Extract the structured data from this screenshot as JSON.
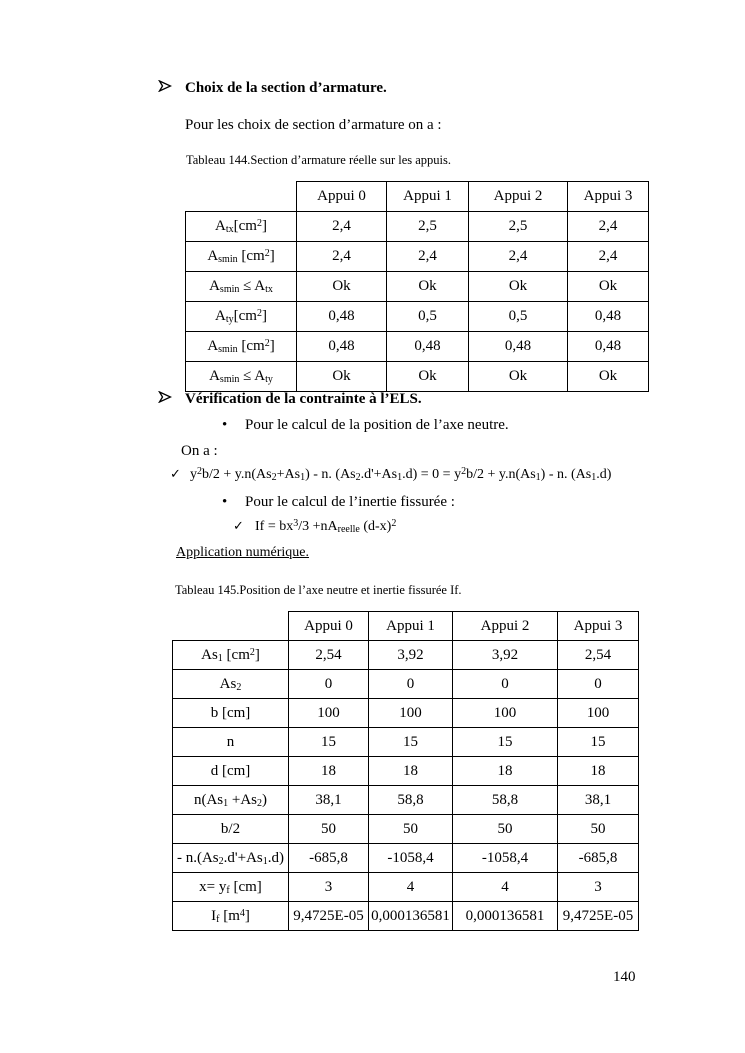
{
  "icons": {
    "check": "✓",
    "bullet": "•"
  },
  "section1": {
    "heading": "Choix de la section d’armature.",
    "intro": "Pour les choix de section d’armature on a :",
    "caption": "Tableau 144.Section d’armature réelle sur les appuis."
  },
  "table1": {
    "col_headers": [
      "Appui 0",
      "Appui 1",
      "Appui 2",
      "Appui 3"
    ],
    "rows": [
      {
        "label": [
          {
            "t": "A"
          },
          {
            "t": "tx",
            "s": "sub"
          },
          {
            "t": "[cm"
          },
          {
            "t": "2",
            "s": "sup"
          },
          {
            "t": "]"
          }
        ],
        "values": [
          "2,4",
          "2,5",
          "2,5",
          "2,4"
        ]
      },
      {
        "label": [
          {
            "t": "A"
          },
          {
            "t": "smin",
            "s": "sub"
          },
          {
            "t": " [cm"
          },
          {
            "t": "2",
            "s": "sup"
          },
          {
            "t": "]"
          }
        ],
        "values": [
          "2,4",
          "2,4",
          "2,4",
          "2,4"
        ]
      },
      {
        "label": [
          {
            "t": "A"
          },
          {
            "t": "smin",
            "s": "sub"
          },
          {
            "t": " ≤ A"
          },
          {
            "t": "tx",
            "s": "sub"
          }
        ],
        "values": [
          "Ok",
          "Ok",
          "Ok",
          "Ok"
        ]
      },
      {
        "label": [
          {
            "t": "A"
          },
          {
            "t": "ty",
            "s": "sub"
          },
          {
            "t": "[cm"
          },
          {
            "t": "2",
            "s": "sup"
          },
          {
            "t": "]"
          }
        ],
        "values": [
          "0,48",
          "0,5",
          "0,5",
          "0,48"
        ]
      },
      {
        "label": [
          {
            "t": "A"
          },
          {
            "t": "smin",
            "s": "sub"
          },
          {
            "t": " [cm"
          },
          {
            "t": "2",
            "s": "sup"
          },
          {
            "t": "]"
          }
        ],
        "values": [
          "0,48",
          "0,48",
          "0,48",
          "0,48"
        ]
      },
      {
        "label": [
          {
            "t": "A"
          },
          {
            "t": "smin",
            "s": "sub"
          },
          {
            "t": " ≤ A"
          },
          {
            "t": "ty",
            "s": "sub"
          }
        ],
        "values": [
          "Ok",
          "Ok",
          "Ok",
          "Ok"
        ]
      }
    ]
  },
  "section2": {
    "heading": "Vérification de la contrainte à l’ELS.",
    "bullet1": "Pour le calcul de la position de l’axe neutre.",
    "on_a": "On a :",
    "equation1": [
      {
        "t": "y"
      },
      {
        "t": "2",
        "s": "sup"
      },
      {
        "t": "b/2 + y.n(As"
      },
      {
        "t": "2",
        "s": "sub"
      },
      {
        "t": "+As"
      },
      {
        "t": "1",
        "s": "sub"
      },
      {
        "t": ") - n. (As"
      },
      {
        "t": "2",
        "s": "sub"
      },
      {
        "t": ".d'+As"
      },
      {
        "t": "1",
        "s": "sub"
      },
      {
        "t": ".d) = 0 = y"
      },
      {
        "t": "2",
        "s": "sup"
      },
      {
        "t": "b/2 + y.n(As"
      },
      {
        "t": "1",
        "s": "sub"
      },
      {
        "t": ") - n. (As"
      },
      {
        "t": "1",
        "s": "sub"
      },
      {
        "t": ".d)"
      }
    ],
    "bullet2": "Pour le calcul de l’inertie fissurée :",
    "equation2": [
      {
        "t": "If = bx"
      },
      {
        "t": "3",
        "s": "sup"
      },
      {
        "t": "/3 +nA"
      },
      {
        "t": "reelle",
        "s": "sub"
      },
      {
        "t": " (d-x)"
      },
      {
        "t": "2",
        "s": "sup"
      }
    ],
    "application": "Application numérique.",
    "caption": "Tableau 145.Position de l’axe neutre et inertie fissurée If."
  },
  "table2": {
    "col_headers": [
      "Appui 0",
      "Appui 1",
      "Appui 2",
      "Appui 3"
    ],
    "rows": [
      {
        "label": [
          {
            "t": "As"
          },
          {
            "t": "1",
            "s": "sub"
          },
          {
            "t": " [cm"
          },
          {
            "t": "2",
            "s": "sup"
          },
          {
            "t": "]"
          }
        ],
        "values": [
          "2,54",
          "3,92",
          "3,92",
          "2,54"
        ]
      },
      {
        "label": [
          {
            "t": "As"
          },
          {
            "t": "2",
            "s": "sub"
          }
        ],
        "values": [
          "0",
          "0",
          "0",
          "0"
        ]
      },
      {
        "label": [
          {
            "t": "b [cm]"
          }
        ],
        "values": [
          "100",
          "100",
          "100",
          "100"
        ]
      },
      {
        "label": [
          {
            "t": "n"
          }
        ],
        "values": [
          "15",
          "15",
          "15",
          "15"
        ]
      },
      {
        "label": [
          {
            "t": "d [cm]"
          }
        ],
        "values": [
          "18",
          "18",
          "18",
          "18"
        ]
      },
      {
        "label": [
          {
            "t": "n(As"
          },
          {
            "t": "1",
            "s": "sub"
          },
          {
            "t": " +As"
          },
          {
            "t": "2",
            "s": "sub"
          },
          {
            "t": ")"
          }
        ],
        "values": [
          "38,1",
          "58,8",
          "58,8",
          "38,1"
        ]
      },
      {
        "label": [
          {
            "t": "b/2"
          }
        ],
        "values": [
          "50",
          "50",
          "50",
          "50"
        ]
      },
      {
        "label": [
          {
            "t": "- n.(As"
          },
          {
            "t": "2",
            "s": "sub"
          },
          {
            "t": ".d'+As"
          },
          {
            "t": "1",
            "s": "sub"
          },
          {
            "t": ".d)"
          }
        ],
        "values": [
          "-685,8",
          "-1058,4",
          "-1058,4",
          "-685,8"
        ]
      },
      {
        "label": [
          {
            "t": "x= y"
          },
          {
            "t": "f",
            "s": "sub"
          },
          {
            "t": " [cm]"
          }
        ],
        "values": [
          "3",
          "4",
          "4",
          "3"
        ]
      },
      {
        "label": [
          {
            "t": "I"
          },
          {
            "t": "f",
            "s": "sub"
          },
          {
            "t": " [m"
          },
          {
            "t": "4",
            "s": "sup"
          },
          {
            "t": "]"
          }
        ],
        "values": [
          "9,4725E-05",
          "0,000136581",
          "0,000136581",
          "9,4725E-05"
        ]
      }
    ]
  },
  "footer": {
    "page_number": "140"
  }
}
